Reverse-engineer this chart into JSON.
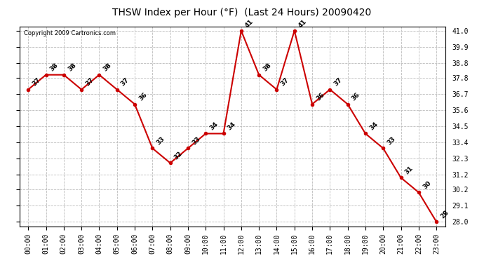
{
  "title": "THSW Index per Hour (°F)  (Last 24 Hours) 20090420",
  "copyright": "Copyright 2009 Cartronics.com",
  "hours": [
    "00:00",
    "01:00",
    "02:00",
    "03:00",
    "04:00",
    "05:00",
    "06:00",
    "07:00",
    "08:00",
    "09:00",
    "10:00",
    "11:00",
    "12:00",
    "13:00",
    "14:00",
    "15:00",
    "16:00",
    "17:00",
    "18:00",
    "19:00",
    "20:00",
    "21:00",
    "22:00",
    "23:00"
  ],
  "values": [
    37,
    38,
    38,
    37,
    38,
    37,
    36,
    33,
    32,
    33,
    34,
    34,
    41,
    38,
    37,
    41,
    36,
    37,
    36,
    34,
    33,
    31,
    30,
    28
  ],
  "line_color": "#cc0000",
  "marker_color": "#cc0000",
  "bg_color": "#ffffff",
  "grid_color": "#bbbbbb",
  "title_fontsize": 10,
  "label_fontsize": 6.5,
  "tick_fontsize": 7,
  "copyright_fontsize": 6,
  "ylim_min": 27.7,
  "ylim_max": 41.3,
  "yticks": [
    28.0,
    29.1,
    30.2,
    31.2,
    32.3,
    33.4,
    34.5,
    35.6,
    36.7,
    37.8,
    38.8,
    39.9,
    41.0
  ]
}
